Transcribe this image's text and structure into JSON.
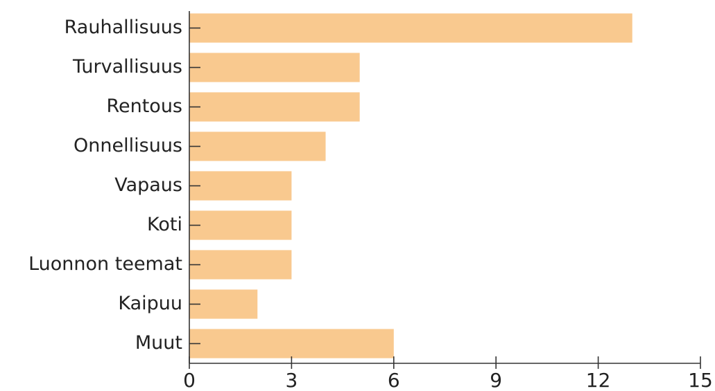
{
  "chart_data": {
    "type": "barh",
    "categories": [
      "Rauhallisuus",
      "Turvallisuus",
      "Rentous",
      "Onnellisuus",
      "Vapaus",
      "Koti",
      "Luonnon teemat",
      "Kaipuu",
      "Muut"
    ],
    "values": [
      13,
      5,
      5,
      4,
      3,
      3,
      3,
      2,
      6
    ],
    "color": "#f9c98f",
    "xlim": [
      0,
      15
    ],
    "xticks": [
      0,
      3,
      6,
      9,
      12,
      15
    ],
    "grid": false
  }
}
